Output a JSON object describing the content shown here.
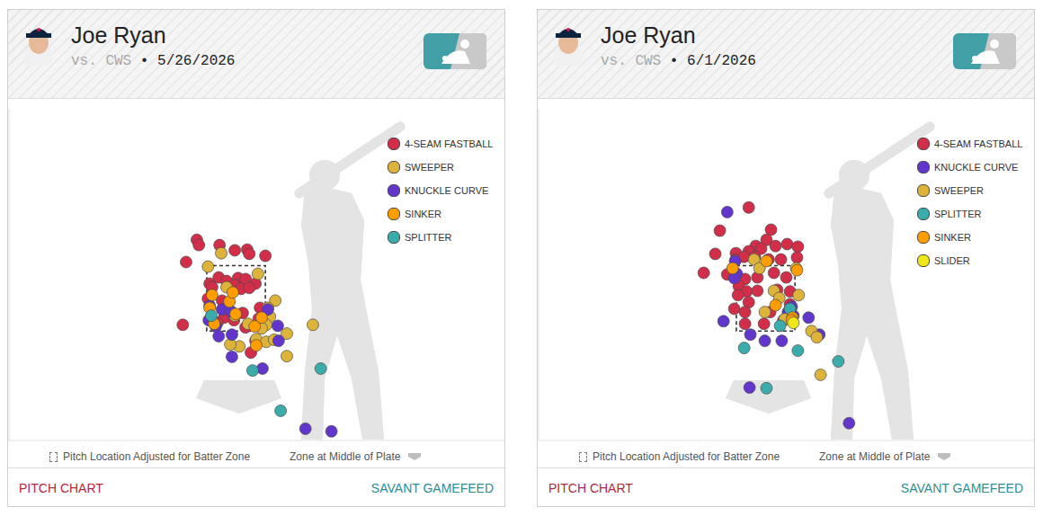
{
  "chart_data": [
    {
      "type": "scatter",
      "title": "Joe Ryan",
      "opponent": "vs. CWS",
      "date_label": "• 5/26/2026",
      "xlim": [
        -5.5,
        6.5
      ],
      "ylim": [
        -1.85,
        8.3
      ],
      "tick_labels": false,
      "legend": "upper right",
      "strike_zone": {
        "x": [
          -0.71,
          0.71
        ],
        "z": [
          1.5,
          3.5
        ]
      },
      "notes": [
        "Pitch Location Adjusted for Batter Zone",
        "Zone at Middle of Plate"
      ],
      "links": [
        "PITCH CHART",
        "SAVANT GAMEFEED"
      ],
      "series": [
        {
          "name": "4-SEAM FASTBALL",
          "color": "#d22d49",
          "marker": "circle",
          "x": [
            -0.95,
            -0.9,
            -0.4,
            -0.03,
            0.27,
            0.32,
            0.71,
            -1.21,
            -0.42,
            -0.64,
            -0.23,
            0.05,
            0.23,
            0.47,
            -0.03,
            0.12,
            0.32,
            -0.58,
            -0.68,
            -0.34,
            0.16,
            0.58,
            -0.29,
            -0.05,
            -1.29,
            -0.45,
            0.23,
            0.55,
            0.36,
            0.47
          ],
          "values": [
            4.29,
            4.13,
            4.13,
            3.97,
            3.99,
            3.86,
            3.8,
            3.61,
            3.14,
            2.95,
            3.03,
            3.12,
            3.09,
            2.95,
            2.9,
            2.79,
            2.82,
            2.84,
            2.49,
            2.43,
            2.05,
            2.21,
            1.91,
            1.83,
            1.69,
            1.75,
            1.61,
            1.88,
            0.84,
            1.2
          ]
        },
        {
          "name": "SWEEPER",
          "color": "#ddb33a",
          "marker": "circle",
          "x": [
            -0.36,
            -0.68,
            0.53,
            0.95,
            0.77,
            0.82,
            0.73,
            0.62,
            0.29,
            -0.03,
            0.49,
            0.73,
            0.92,
            1.23,
            1.86,
            1.23,
            0.08,
            -0.14,
            -0.23
          ],
          "values": [
            3.88,
            3.47,
            3.25,
            2.43,
            2.21,
            1.94,
            1.69,
            1.58,
            1.72,
            1.97,
            1.25,
            1.17,
            1.23,
            1.42,
            1.69,
            0.73,
            1.03,
            1.09,
            2.84
          ]
        },
        {
          "name": "KNUCKLE CURVE",
          "color": "#6236cd",
          "marker": "circle",
          "x": [
            -0.64,
            -0.34,
            -0.12,
            0.77,
            -0.49,
            -0.42,
            -0.1,
            0.64,
            -0.1,
            1.01,
            1.03,
            1.68,
            2.31,
            -0.66
          ],
          "values": [
            2.27,
            2.16,
            2.1,
            2.16,
            1.64,
            1.34,
            0.71,
            0.35,
            1.39,
            1.66,
            1.2,
            -1.49,
            -1.57,
            1.83
          ]
        },
        {
          "name": "SINKER",
          "color": "#fe9d00",
          "marker": "circle",
          "x": [
            -0.58,
            -0.64,
            -0.16,
            -0.01,
            0.62,
            0.45,
            0.49,
            -0.08,
            -0.53
          ],
          "values": [
            2.6,
            2.21,
            2.4,
            2.02,
            1.91,
            1.64,
            1.06,
            2.68,
            1.72
          ]
        },
        {
          "name": "SPLITTER",
          "color": "#3bacac",
          "marker": "circle",
          "x": [
            -0.6,
            0.4,
            2.05,
            1.08
          ],
          "values": [
            1.97,
            0.29,
            0.35,
            -0.94
          ]
        }
      ]
    },
    {
      "type": "scatter",
      "title": "Joe Ryan",
      "opponent": "vs. CWS",
      "date_label": "• 6/1/2026",
      "xlim": [
        -5.5,
        6.5
      ],
      "ylim": [
        -1.85,
        8.3
      ],
      "tick_labels": false,
      "legend": "upper right",
      "strike_zone": {
        "x": [
          -0.71,
          0.71
        ],
        "z": [
          1.5,
          3.5
        ]
      },
      "notes": [
        "Pitch Location Adjusted for Batter Zone",
        "Zone at Middle of Plate"
      ],
      "links": [
        "PITCH CHART",
        "SAVANT GAMEFEED"
      ],
      "series": [
        {
          "name": "4-SEAM FASTBALL",
          "color": "#d22d49",
          "marker": "circle",
          "x": [
            -0.41,
            0.13,
            -1.11,
            -0.24,
            0.02,
            -0.72,
            -0.41,
            -0.11,
            0.24,
            0.52,
            0.78,
            -0.72,
            -0.52,
            -0.26,
            0.07,
            0.37,
            0.76,
            -1.5,
            -1.22,
            -0.93,
            -0.5,
            -0.2,
            0.2,
            0.5,
            -0.65,
            -0.46,
            -0.2,
            0.28,
            0.59,
            -0.41,
            -0.76,
            -0.5,
            0.11,
            0.59,
            -0.5,
            -0.04,
            0.43,
            -0.67
          ],
          "values": [
            5.28,
            4.6,
            4.57,
            4.1,
            4.29,
            3.88,
            3.94,
            4.02,
            4.1,
            4.16,
            4.08,
            3.69,
            3.77,
            3.77,
            3.69,
            3.69,
            3.75,
            3.28,
            3.86,
            3.23,
            3.09,
            3.14,
            3.28,
            3.14,
            2.87,
            2.71,
            2.73,
            2.76,
            2.71,
            2.38,
            2.18,
            2.08,
            2.08,
            2.32,
            1.72,
            1.72,
            1.83,
            2.6
          ]
        },
        {
          "name": "KNUCKLE CURVE",
          "color": "#6236cd",
          "marker": "circle",
          "x": [
            -0.93,
            -0.74,
            -0.7,
            -0.76,
            0.63,
            0.54,
            1.04,
            -1.02,
            -0.37,
            -0.02,
            0.39,
            1.3,
            -0.39,
            2.02,
            0.67
          ],
          "values": [
            5.14,
            3.64,
            3.25,
            3.12,
            2.24,
            2.08,
            1.91,
            1.8,
            1.39,
            1.2,
            1.2,
            1.39,
            -0.23,
            -1.32,
            1.97
          ]
        },
        {
          "name": "SWEEPER",
          "color": "#ddb33a",
          "marker": "circle",
          "x": [
            -0.28,
            -0.15,
            0.2,
            -0.02,
            0.33,
            0.8,
            1.11,
            1.24,
            1.33,
            0.74,
            0.46
          ],
          "values": [
            3.69,
            3.42,
            2.73,
            2.08,
            2.51,
            2.6,
            1.5,
            1.31,
            0.16,
            3.42,
            1.86
          ]
        },
        {
          "name": "SPLITTER",
          "color": "#3bacac",
          "marker": "circle",
          "x": [
            -0.52,
            0.35,
            0.78,
            1.76,
            0.02,
            0.59
          ],
          "values": [
            0.98,
            1.66,
            0.9,
            0.57,
            -0.25,
            2.18
          ]
        },
        {
          "name": "SINKER",
          "color": "#fe9d00",
          "marker": "circle",
          "x": [
            -0.8,
            0.02,
            0.65,
            0.24,
            0.76,
            0.63
          ],
          "values": [
            3.42,
            3.64,
            1.91,
            2.29,
            3.36,
            1.83
          ]
        },
        {
          "name": "SLIDER",
          "color": "#eee716",
          "marker": "circle",
          "x": [
            0.67
          ],
          "values": [
            1.75
          ]
        }
      ]
    }
  ]
}
